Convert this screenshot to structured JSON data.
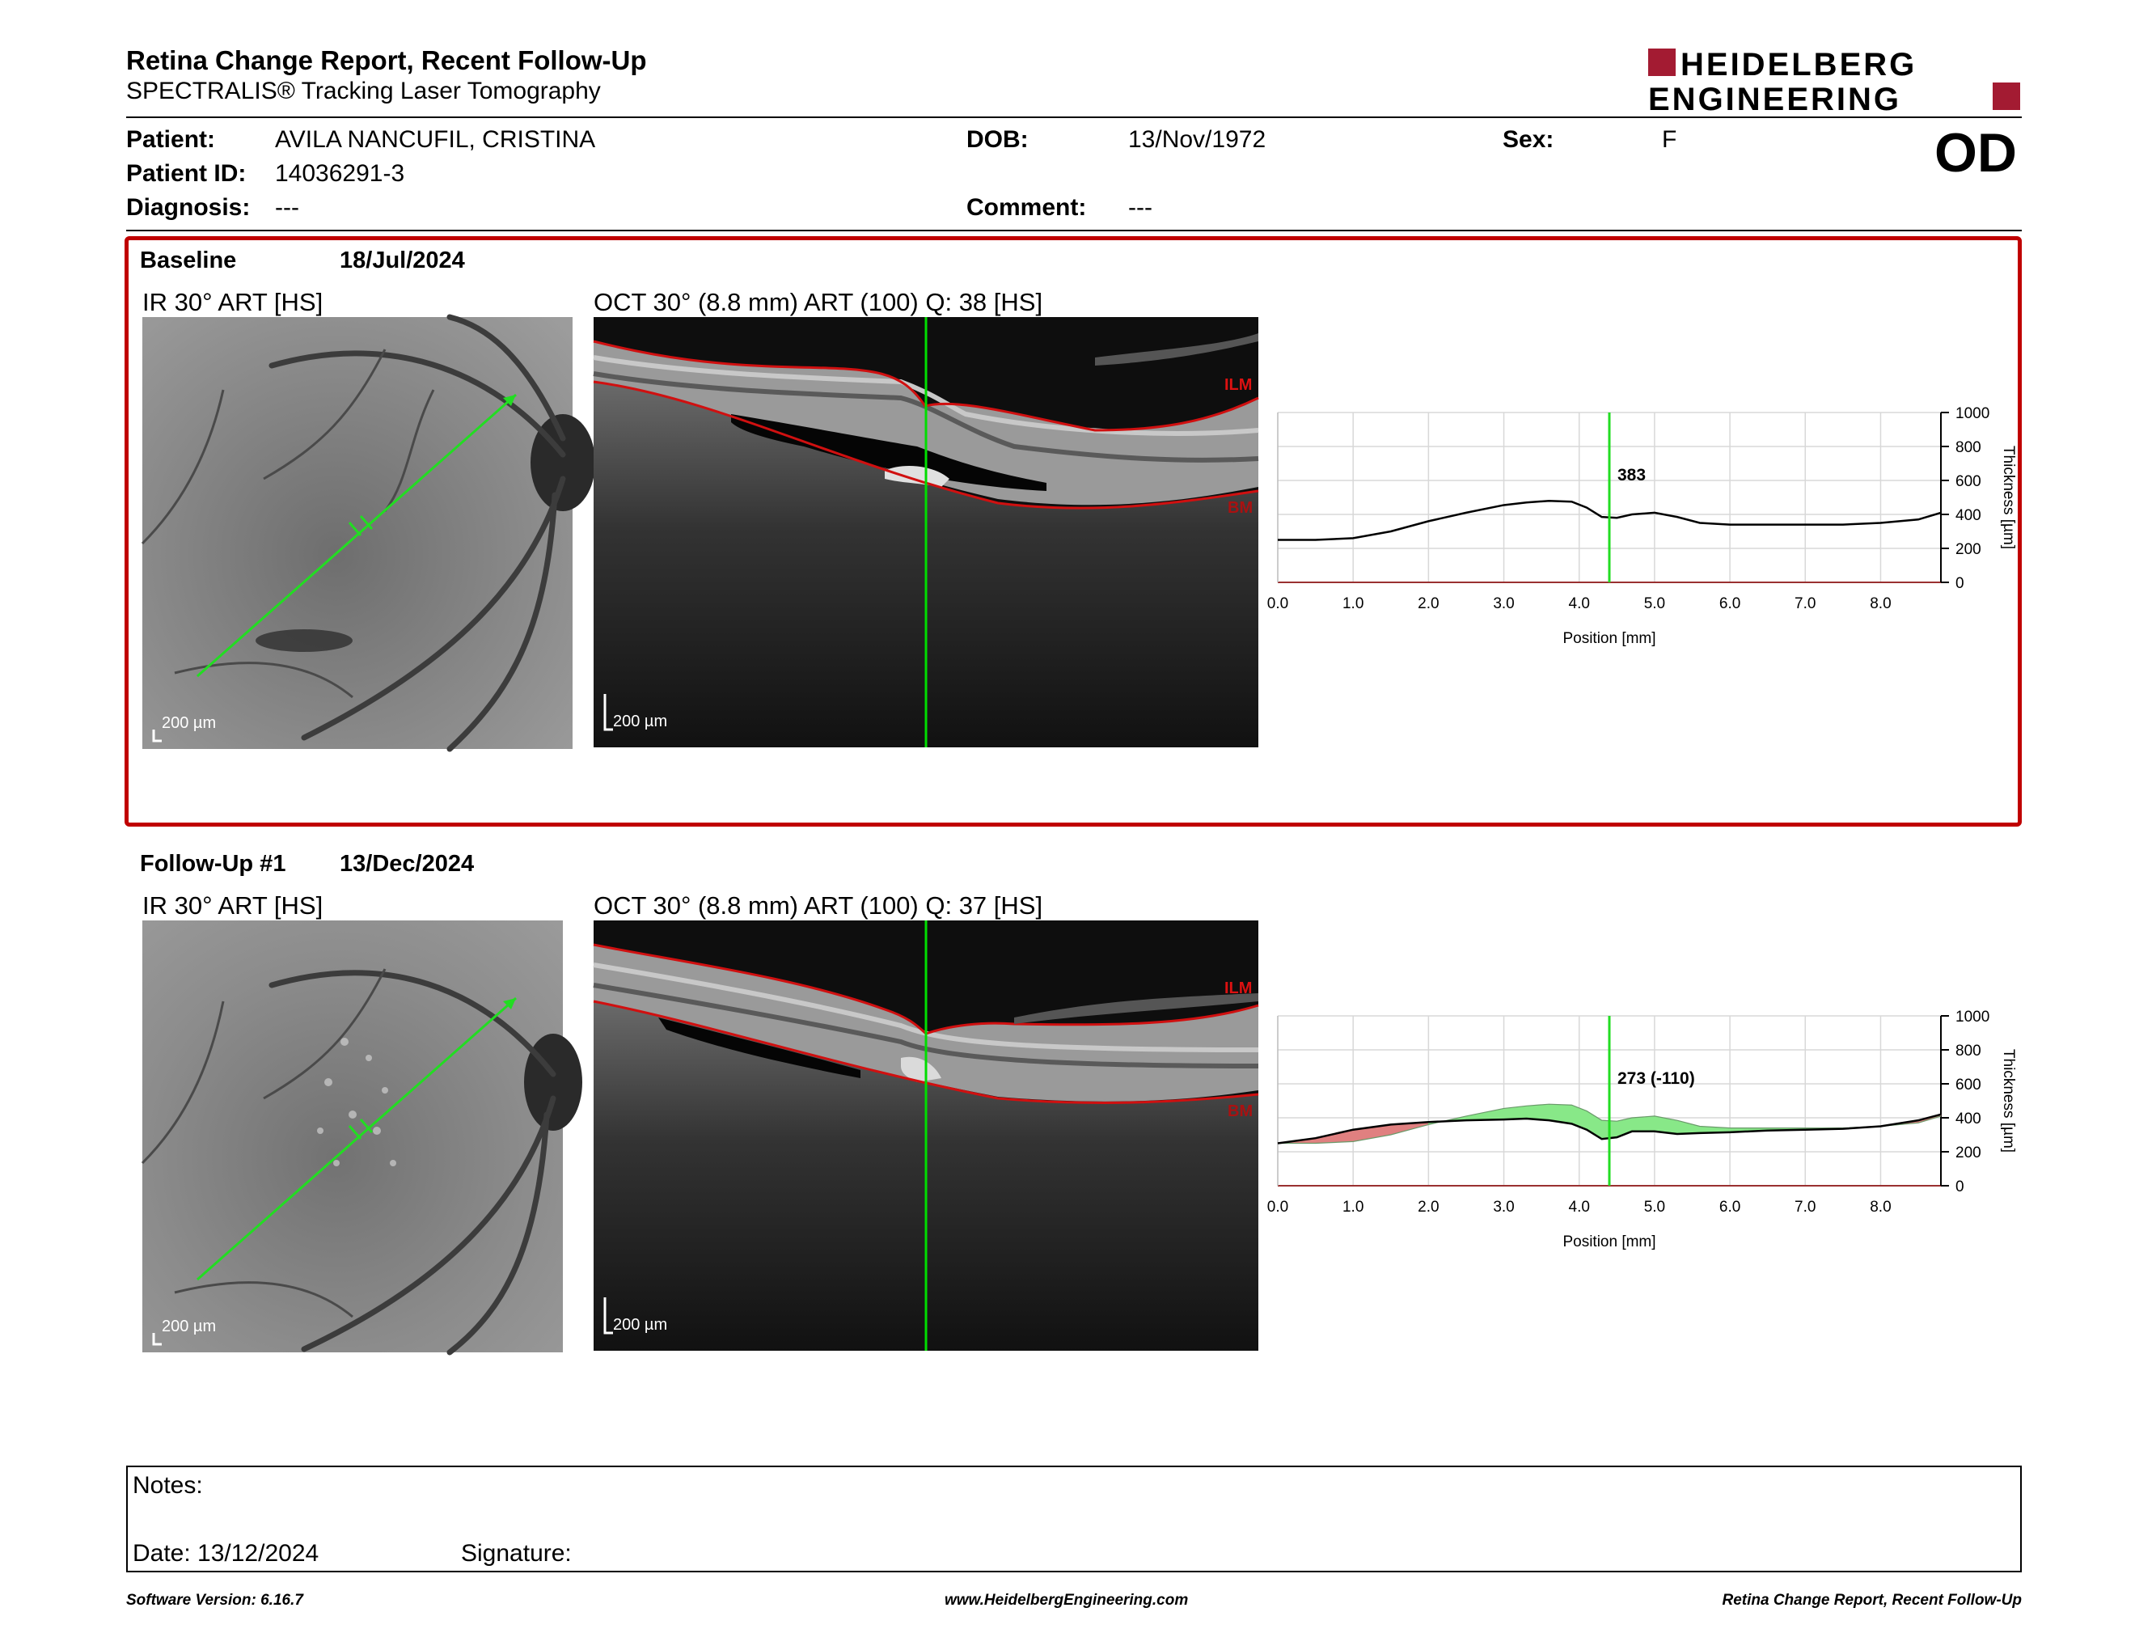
{
  "header": {
    "title": "Retina Change Report, Recent Follow-Up",
    "subtitle": "SPECTRALIS® Tracking Laser Tomography",
    "logo_line1": "HEIDELBERG",
    "logo_line2": "ENGINEERING",
    "eye": "OD"
  },
  "patient": {
    "patient_label": "Patient:",
    "patient_value": "AVILA NANCUFIL, CRISTINA",
    "dob_label": "DOB:",
    "dob_value": "13/Nov/1972",
    "sex_label": "Sex:",
    "sex_value": "F",
    "id_label": "Patient ID:",
    "id_value": "14036291-3",
    "diagnosis_label": "Diagnosis:",
    "diagnosis_value": "---",
    "comment_label": "Comment:",
    "comment_value": "---"
  },
  "baseline": {
    "label": "Baseline",
    "date": "18/Jul/2024",
    "ir_label": "IR 30° ART [HS]",
    "oct_label": "OCT 30° (8.8 mm) ART (100) Q: 38 [HS]",
    "scale_ir": "200 µm",
    "scale_oct": "200 µm",
    "ilm": "ILM",
    "bm": "BM",
    "marker_value": "383"
  },
  "followup": {
    "label": "Follow-Up #1",
    "date": "13/Dec/2024",
    "ir_label": "IR 30° ART [HS]",
    "oct_label": "OCT 30° (8.8 mm) ART (100) Q: 37 [HS]",
    "scale_ir": "200 µm",
    "scale_oct": "200 µm",
    "ilm": "ILM",
    "bm": "BM",
    "marker_value": "273 (-110)"
  },
  "chart_common": {
    "xlabel": "Position [mm]",
    "ylabel": "Thickness [µm]",
    "xticks": [
      "0.0",
      "1.0",
      "2.0",
      "3.0",
      "4.0",
      "5.0",
      "6.0",
      "7.0",
      "8.0"
    ],
    "yticks": [
      "0",
      "200",
      "400",
      "600",
      "800",
      "1000"
    ]
  },
  "chart_data": [
    {
      "type": "line",
      "xlabel": "Position [mm]",
      "ylabel": "Thickness [µm]",
      "xlim": [
        0,
        8.8
      ],
      "ylim": [
        0,
        1000
      ],
      "marker_x": 4.4,
      "marker_label": "383",
      "series": [
        {
          "x": [
            0.0,
            0.5,
            1.0,
            1.5,
            2.0,
            2.5,
            3.0,
            3.3,
            3.6,
            3.9,
            4.1,
            4.3,
            4.5,
            4.7,
            5.0,
            5.3,
            5.6,
            6.0,
            6.5,
            7.0,
            7.5,
            8.0,
            8.5,
            8.8
          ],
          "y": [
            250,
            250,
            260,
            300,
            360,
            410,
            455,
            470,
            480,
            475,
            440,
            385,
            380,
            400,
            410,
            385,
            350,
            340,
            340,
            340,
            340,
            350,
            370,
            410
          ]
        }
      ]
    },
    {
      "type": "line",
      "xlabel": "Position [mm]",
      "ylabel": "Thickness [µm]",
      "xlim": [
        0,
        8.8
      ],
      "ylim": [
        0,
        1000
      ],
      "marker_x": 4.4,
      "marker_label": "273 (-110)",
      "series": [
        {
          "x": [
            0.0,
            0.5,
            1.0,
            1.5,
            2.0,
            2.5,
            3.0,
            3.3,
            3.6,
            3.9,
            4.1,
            4.3,
            4.5,
            4.7,
            5.0,
            5.3,
            5.6,
            6.0,
            6.5,
            7.0,
            7.5,
            8.0,
            8.5,
            8.8
          ],
          "y": [
            250,
            280,
            330,
            360,
            375,
            385,
            390,
            395,
            385,
            365,
            330,
            275,
            285,
            320,
            320,
            305,
            310,
            315,
            325,
            330,
            335,
            350,
            385,
            420
          ]
        }
      ],
      "baseline_reference": [
        250,
        250,
        260,
        300,
        360,
        410,
        455,
        470,
        480,
        475,
        440,
        385,
        380,
        400,
        410,
        385,
        350,
        340,
        340,
        340,
        340,
        350,
        370,
        410
      ],
      "colors": {
        "increase": "#e08080",
        "decrease": "#88e888"
      }
    }
  ],
  "notes": {
    "notes_label": "Notes:",
    "date_label": "Date: 13/12/2024",
    "signature_label": "Signature:"
  },
  "footer": {
    "software": "Software Version: 6.16.7",
    "website": "www.HeidelbergEngineering.com",
    "report": "Retina Change Report, Recent Follow-Up"
  },
  "colors": {
    "brand_red": "#a31b32",
    "frame_red": "#c00000",
    "scan_line": "#00dd00",
    "layer_line": "#d01010"
  }
}
